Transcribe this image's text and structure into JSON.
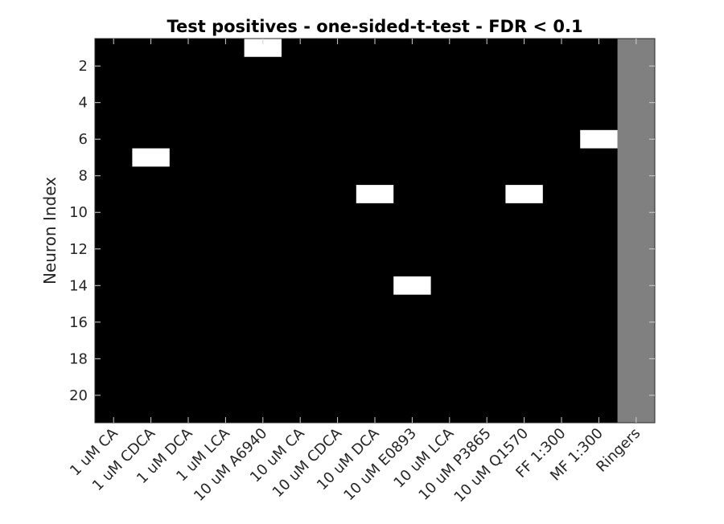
{
  "chart_data": {
    "type": "heatmap",
    "title": "Test positives - one-sided-t-test - FDR < 0.1",
    "xlabel": "",
    "ylabel": "Neuron Index",
    "categories": [
      "1 uM CA",
      "1 uM CDCA",
      "1 uM DCA",
      "1 uM LCA",
      "10 uM A6940",
      "10 uM CA",
      "10 uM CDCA",
      "10 uM DCA",
      "10 uM E0893",
      "10 uM LCA",
      "10 uM P3865",
      "10 uM Q1570",
      "FF 1:300",
      "MF 1:300",
      "Ringers"
    ],
    "y_range": [
      1,
      21
    ],
    "ylim": [
      0.5,
      21.5
    ],
    "yticks": [
      2,
      4,
      6,
      8,
      10,
      12,
      14,
      16,
      18,
      20
    ],
    "positives": [
      {
        "column": "1 uM CDCA",
        "neuron": 7
      },
      {
        "column": "10 uM A6940",
        "neuron": 1
      },
      {
        "column": "10 uM DCA",
        "neuron": 9
      },
      {
        "column": "10 uM E0893",
        "neuron": 14
      },
      {
        "column": "10 uM Q1570",
        "neuron": 9
      },
      {
        "column": "MF 1:300",
        "neuron": 6
      }
    ],
    "masked_columns": [
      "Ringers"
    ],
    "colors": {
      "negative": "#000000",
      "positive": "#ffffff",
      "masked": "#808080"
    },
    "grid": false,
    "legend": "none"
  }
}
